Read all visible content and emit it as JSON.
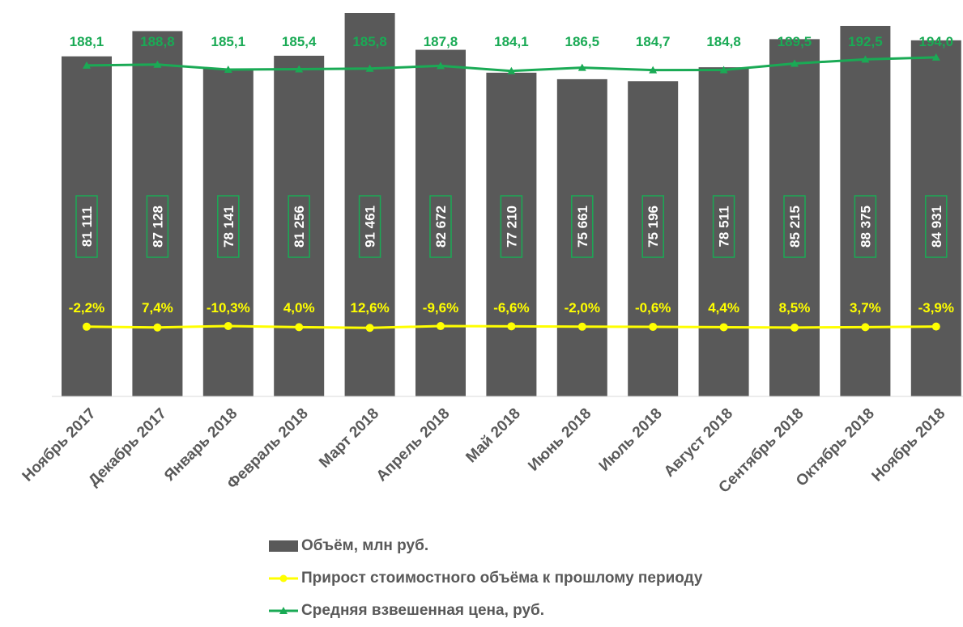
{
  "chart_data": {
    "type": "bar",
    "categories": [
      "Ноябрь 2017",
      "Декабрь 2017",
      "Январь 2018",
      "Февраль 2018",
      "Март 2018",
      "Апрель 2018",
      "Май 2018",
      "Июнь 2018",
      "Июль 2018",
      "Август 2018",
      "Сентябрь 2018",
      "Октябрь 2018",
      "Ноябрь 2018"
    ],
    "series": [
      {
        "name": "Объём, млн руб.",
        "kind": "bar",
        "color": "#595959",
        "values": [
          81111,
          87128,
          78141,
          81256,
          91461,
          82672,
          77210,
          75661,
          75196,
          78511,
          85215,
          88375,
          84931
        ],
        "labels": [
          "81 111",
          "87 128",
          "78 141",
          "81 256",
          "91 461",
          "82 672",
          "77 210",
          "75 661",
          "75 196",
          "78 511",
          "85 215",
          "88 375",
          "84 931"
        ]
      },
      {
        "name": "Прирост стоимостного объёма к прошлому периоду",
        "kind": "line",
        "color": "#ffff00",
        "values": [
          -2.2,
          7.4,
          -10.3,
          4.0,
          12.6,
          -9.6,
          -6.6,
          -2.0,
          -0.6,
          4.4,
          8.5,
          3.7,
          -3.9
        ],
        "labels": [
          "-2,2%",
          "7,4%",
          "-10,3%",
          "4,0%",
          "12,6%",
          "-9,6%",
          "-6,6%",
          "-2,0%",
          "-0,6%",
          "4,4%",
          "8,5%",
          "3,7%",
          "-3,9%"
        ]
      },
      {
        "name": "Средняя взвешенная цена, руб.",
        "kind": "line",
        "color": "#1aaa55",
        "values": [
          188.1,
          188.8,
          185.1,
          185.4,
          185.8,
          187.8,
          184.1,
          186.5,
          184.7,
          184.8,
          189.5,
          192.5,
          194.0
        ],
        "labels": [
          "188,1",
          "188,8",
          "185,1",
          "185,4",
          "185,8",
          "187,8",
          "184,1",
          "186,5",
          "184,7",
          "184,8",
          "189,5",
          "192,5",
          "194,0"
        ]
      }
    ],
    "legend_position": "bottom",
    "grid": false
  }
}
